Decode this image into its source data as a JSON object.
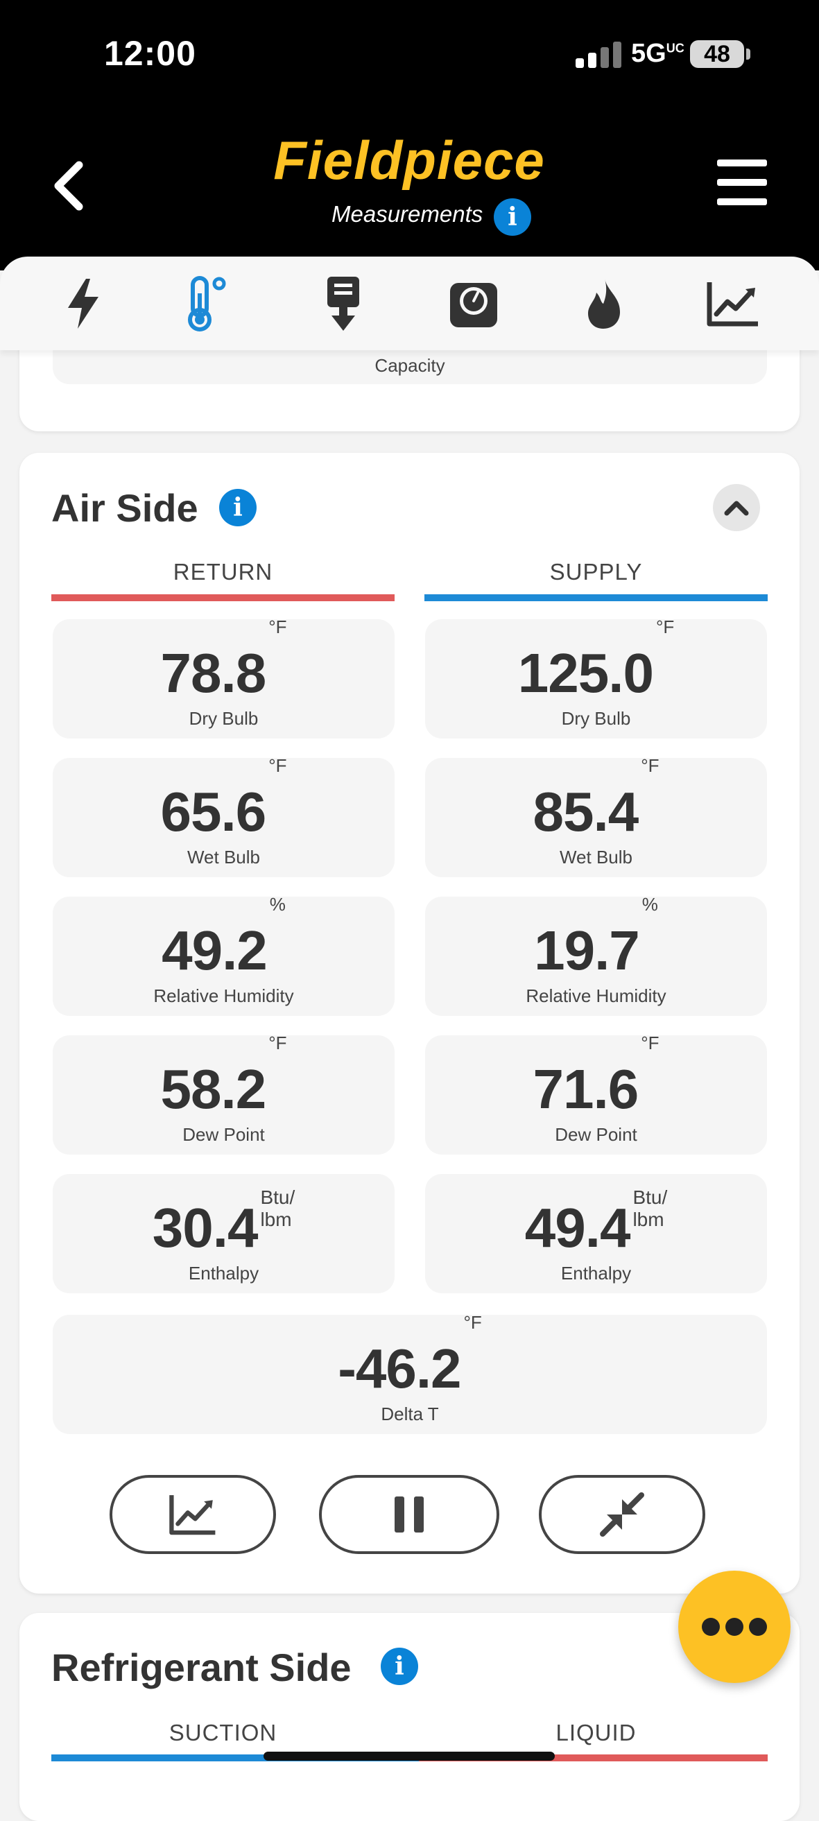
{
  "status": {
    "time": "12:00",
    "network": "5G",
    "network_sup": "UC",
    "battery": "48"
  },
  "header": {
    "logo": "Fieldpiece",
    "subtitle": "Measurements",
    "info_glyph": "i"
  },
  "tabs": [
    {
      "icon": "lightning-icon"
    },
    {
      "icon": "thermometer-icon",
      "active": true
    },
    {
      "icon": "download-icon"
    },
    {
      "icon": "gauge-icon"
    },
    {
      "icon": "flame-icon"
    },
    {
      "icon": "chart-icon"
    }
  ],
  "top_card": {
    "capacity_label": "Capacity"
  },
  "air_side": {
    "title": "Air Side",
    "return_label": "RETURN",
    "supply_label": "SUPPLY",
    "return_color": "#e05a5a",
    "supply_color": "#1d8ad6",
    "return": [
      {
        "value": "78.8",
        "unit": "°F",
        "label": "Dry Bulb"
      },
      {
        "value": "65.6",
        "unit": "°F",
        "label": "Wet Bulb"
      },
      {
        "value": "49.2",
        "unit": "%",
        "label": "Relative Humidity"
      },
      {
        "value": "58.2",
        "unit": "°F",
        "label": "Dew Point"
      },
      {
        "value": "30.4",
        "unit_top": "Btu/",
        "unit_bottom": "lbm",
        "label": "Enthalpy"
      }
    ],
    "supply": [
      {
        "value": "125.0",
        "unit": "°F",
        "label": "Dry Bulb"
      },
      {
        "value": "85.4",
        "unit": "°F",
        "label": "Wet Bulb"
      },
      {
        "value": "19.7",
        "unit": "%",
        "label": "Relative Humidity"
      },
      {
        "value": "71.6",
        "unit": "°F",
        "label": "Dew Point"
      },
      {
        "value": "49.4",
        "unit_top": "Btu/",
        "unit_bottom": "lbm",
        "label": "Enthalpy"
      }
    ],
    "delta": {
      "value": "-46.2",
      "unit": "°F",
      "label": "Delta T"
    }
  },
  "refrigerant_side": {
    "title": "Refrigerant Side",
    "suction_label": "SUCTION",
    "liquid_label": "LIQUID"
  }
}
